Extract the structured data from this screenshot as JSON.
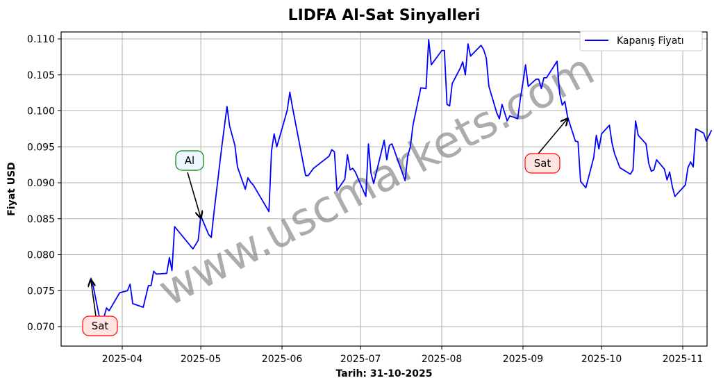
{
  "chart_data": {
    "type": "line",
    "title": "LIDFA Al-Sat Sinyalleri",
    "xlabel": "Tarih: 31-10-2025",
    "ylabel": "Fiyat USD",
    "ylim": [
      0.0672,
      0.1118
    ],
    "yticks": [
      "0.070",
      "0.075",
      "0.080",
      "0.085",
      "0.090",
      "0.095",
      "0.100",
      "0.105",
      "0.110"
    ],
    "xticks": [
      "2025-04",
      "2025-05",
      "2025-06",
      "2025-07",
      "2025-08",
      "2025-09",
      "2025-10",
      "2025-11"
    ],
    "grid": true,
    "legend_position": "upper right",
    "series": [
      {
        "name": "Kapanış Fiyatı",
        "color": "#0000ff",
        "points": [
          [
            "2025-03-20",
            0.0768
          ],
          [
            "2025-03-21",
            0.0755
          ],
          [
            "2025-03-24",
            0.07
          ],
          [
            "2025-03-26",
            0.0726
          ],
          [
            "2025-03-27",
            0.0722
          ],
          [
            "2025-03-31",
            0.0747
          ],
          [
            "2025-04-03",
            0.075
          ],
          [
            "2025-04-04",
            0.0759
          ],
          [
            "2025-04-05",
            0.0732
          ],
          [
            "2025-04-09",
            0.0727
          ],
          [
            "2025-04-11",
            0.0757
          ],
          [
            "2025-04-12",
            0.0757
          ],
          [
            "2025-04-13",
            0.0777
          ],
          [
            "2025-04-14",
            0.0773
          ],
          [
            "2025-04-18",
            0.0774
          ],
          [
            "2025-04-19",
            0.0796
          ],
          [
            "2025-04-20",
            0.0778
          ],
          [
            "2025-04-21",
            0.0839
          ],
          [
            "2025-04-28",
            0.0808
          ],
          [
            "2025-04-30",
            0.082
          ],
          [
            "2025-05-01",
            0.0854
          ],
          [
            "2025-05-04",
            0.0828
          ],
          [
            "2025-05-05",
            0.0824
          ],
          [
            "2025-05-06",
            0.0858
          ],
          [
            "2025-05-09",
            0.095
          ],
          [
            "2025-05-11",
            0.1006
          ],
          [
            "2025-05-12",
            0.0979
          ],
          [
            "2025-05-14",
            0.0952
          ],
          [
            "2025-05-15",
            0.0922
          ],
          [
            "2025-05-18",
            0.0891
          ],
          [
            "2025-05-19",
            0.0907
          ],
          [
            "2025-05-20",
            0.0901
          ],
          [
            "2025-05-21",
            0.0897
          ],
          [
            "2025-05-27",
            0.086
          ],
          [
            "2025-05-28",
            0.0944
          ],
          [
            "2025-05-29",
            0.0968
          ],
          [
            "2025-05-30",
            0.095
          ],
          [
            "2025-06-01",
            0.0975
          ],
          [
            "2025-06-03",
            0.1001
          ],
          [
            "2025-06-04",
            0.1026
          ],
          [
            "2025-06-05",
            0.1005
          ],
          [
            "2025-06-10",
            0.091
          ],
          [
            "2025-06-11",
            0.091
          ],
          [
            "2025-06-13",
            0.092
          ],
          [
            "2025-06-19",
            0.0937
          ],
          [
            "2025-06-20",
            0.0946
          ],
          [
            "2025-06-21",
            0.0943
          ],
          [
            "2025-06-22",
            0.0889
          ],
          [
            "2025-06-25",
            0.0905
          ],
          [
            "2025-06-26",
            0.0939
          ],
          [
            "2025-06-27",
            0.0918
          ],
          [
            "2025-06-28",
            0.092
          ],
          [
            "2025-06-29",
            0.0915
          ],
          [
            "2025-07-03",
            0.0881
          ],
          [
            "2025-07-04",
            0.0954
          ],
          [
            "2025-07-05",
            0.0913
          ],
          [
            "2025-07-06",
            0.0899
          ],
          [
            "2025-07-10",
            0.0959
          ],
          [
            "2025-07-11",
            0.0932
          ],
          [
            "2025-07-12",
            0.0952
          ],
          [
            "2025-07-13",
            0.0954
          ],
          [
            "2025-07-18",
            0.0903
          ],
          [
            "2025-07-19",
            0.0937
          ],
          [
            "2025-07-20",
            0.095
          ],
          [
            "2025-07-21",
            0.098
          ],
          [
            "2025-07-24",
            0.1032
          ],
          [
            "2025-07-26",
            0.1031
          ],
          [
            "2025-07-27",
            0.1099
          ],
          [
            "2025-07-28",
            0.1064
          ],
          [
            "2025-08-01",
            0.1084
          ],
          [
            "2025-08-02",
            0.1084
          ],
          [
            "2025-08-03",
            0.1009
          ],
          [
            "2025-08-04",
            0.1007
          ],
          [
            "2025-08-05",
            0.1038
          ],
          [
            "2025-08-08",
            0.1059
          ],
          [
            "2025-08-09",
            0.1068
          ],
          [
            "2025-08-10",
            0.105
          ],
          [
            "2025-08-11",
            0.1093
          ],
          [
            "2025-08-12",
            0.1076
          ],
          [
            "2025-08-16",
            0.1091
          ],
          [
            "2025-08-17",
            0.1085
          ],
          [
            "2025-08-18",
            0.1073
          ],
          [
            "2025-08-19",
            0.1034
          ],
          [
            "2025-08-22",
            0.0997
          ],
          [
            "2025-08-23",
            0.0989
          ],
          [
            "2025-08-24",
            0.1009
          ],
          [
            "2025-08-26",
            0.0986
          ],
          [
            "2025-08-27",
            0.0993
          ],
          [
            "2025-08-30",
            0.0989
          ],
          [
            "2025-08-31",
            0.1017
          ],
          [
            "2025-09-01",
            0.104
          ],
          [
            "2025-09-02",
            0.1064
          ],
          [
            "2025-09-03",
            0.1034
          ],
          [
            "2025-09-06",
            0.1044
          ],
          [
            "2025-09-07",
            0.1044
          ],
          [
            "2025-09-08",
            0.1031
          ],
          [
            "2025-09-09",
            0.1046
          ],
          [
            "2025-09-10",
            0.1046
          ],
          [
            "2025-09-14",
            0.1069
          ],
          [
            "2025-09-15",
            0.1024
          ],
          [
            "2025-09-16",
            0.1008
          ],
          [
            "2025-09-17",
            0.1013
          ],
          [
            "2025-09-18",
            0.0992
          ],
          [
            "2025-09-21",
            0.0958
          ],
          [
            "2025-09-22",
            0.0957
          ],
          [
            "2025-09-23",
            0.0902
          ],
          [
            "2025-09-25",
            0.0893
          ],
          [
            "2025-09-28",
            0.0935
          ],
          [
            "2025-09-29",
            0.0966
          ],
          [
            "2025-09-30",
            0.0947
          ],
          [
            "2025-10-01",
            0.0968
          ],
          [
            "2025-10-04",
            0.098
          ],
          [
            "2025-10-05",
            0.0955
          ],
          [
            "2025-10-06",
            0.094
          ],
          [
            "2025-10-08",
            0.0921
          ],
          [
            "2025-10-12",
            0.0912
          ],
          [
            "2025-10-13",
            0.0918
          ],
          [
            "2025-10-14",
            0.0986
          ],
          [
            "2025-10-15",
            0.0966
          ],
          [
            "2025-10-18",
            0.0954
          ],
          [
            "2025-10-19",
            0.0927
          ],
          [
            "2025-10-20",
            0.0916
          ],
          [
            "2025-10-21",
            0.0918
          ],
          [
            "2025-10-22",
            0.0932
          ],
          [
            "2025-10-25",
            0.0919
          ],
          [
            "2025-10-26",
            0.0904
          ],
          [
            "2025-10-27",
            0.0915
          ],
          [
            "2025-10-28",
            0.0895
          ],
          [
            "2025-10-29",
            0.0881
          ],
          [
            "2025-11-02",
            0.0897
          ],
          [
            "2025-11-03",
            0.0921
          ],
          [
            "2025-11-04",
            0.0929
          ],
          [
            "2025-11-05",
            0.0922
          ],
          [
            "2025-11-06",
            0.0975
          ],
          [
            "2025-11-09",
            0.0969
          ],
          [
            "2025-11-10",
            0.0958
          ],
          [
            "2025-11-12",
            0.0973
          ]
        ]
      }
    ],
    "annotations": [
      {
        "label": "Sat",
        "type": "sell",
        "date": "2025-03-20",
        "price": 0.0768
      },
      {
        "label": "Al",
        "type": "buy",
        "date": "2025-05-01",
        "price": 0.0854
      },
      {
        "label": "Sat",
        "type": "sell",
        "date": "2025-09-18",
        "price": 0.0992
      }
    ]
  },
  "legend": {
    "label": "Kapanış Fiyatı"
  },
  "watermark": "www.uscmarkets.com"
}
